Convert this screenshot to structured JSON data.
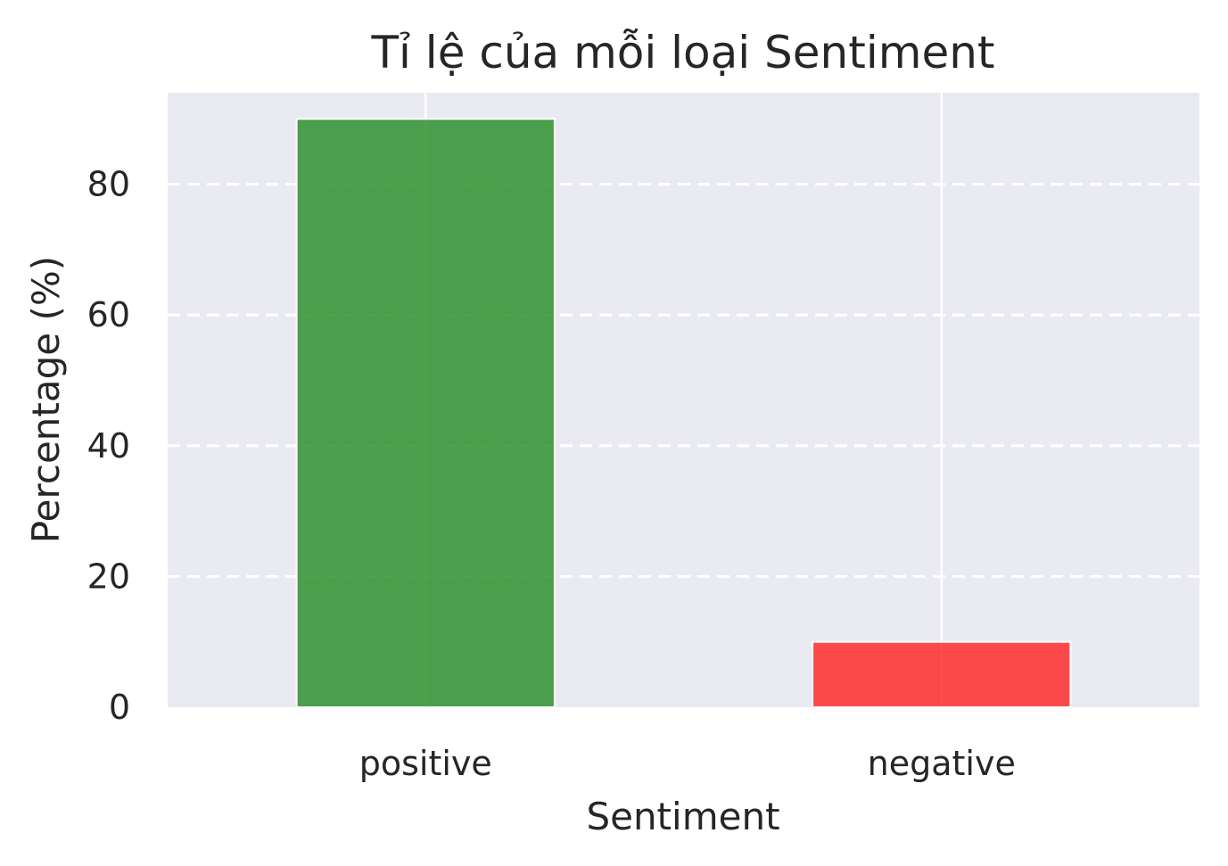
{
  "chart_data": {
    "type": "bar",
    "title": "Tỉ lệ của mỗi loại Sentiment",
    "xlabel": "Sentiment",
    "ylabel": "Percentage (%)",
    "categories": [
      "positive",
      "negative"
    ],
    "values": [
      90,
      10
    ],
    "bar_colors": [
      "#228B22",
      "#FF2020"
    ],
    "ylim": [
      0,
      94
    ],
    "yticks": [
      0,
      20,
      40,
      60,
      80
    ],
    "grid": "y-dashed, x-solid",
    "background_color": "#EAEAF2",
    "legend": "none"
  }
}
